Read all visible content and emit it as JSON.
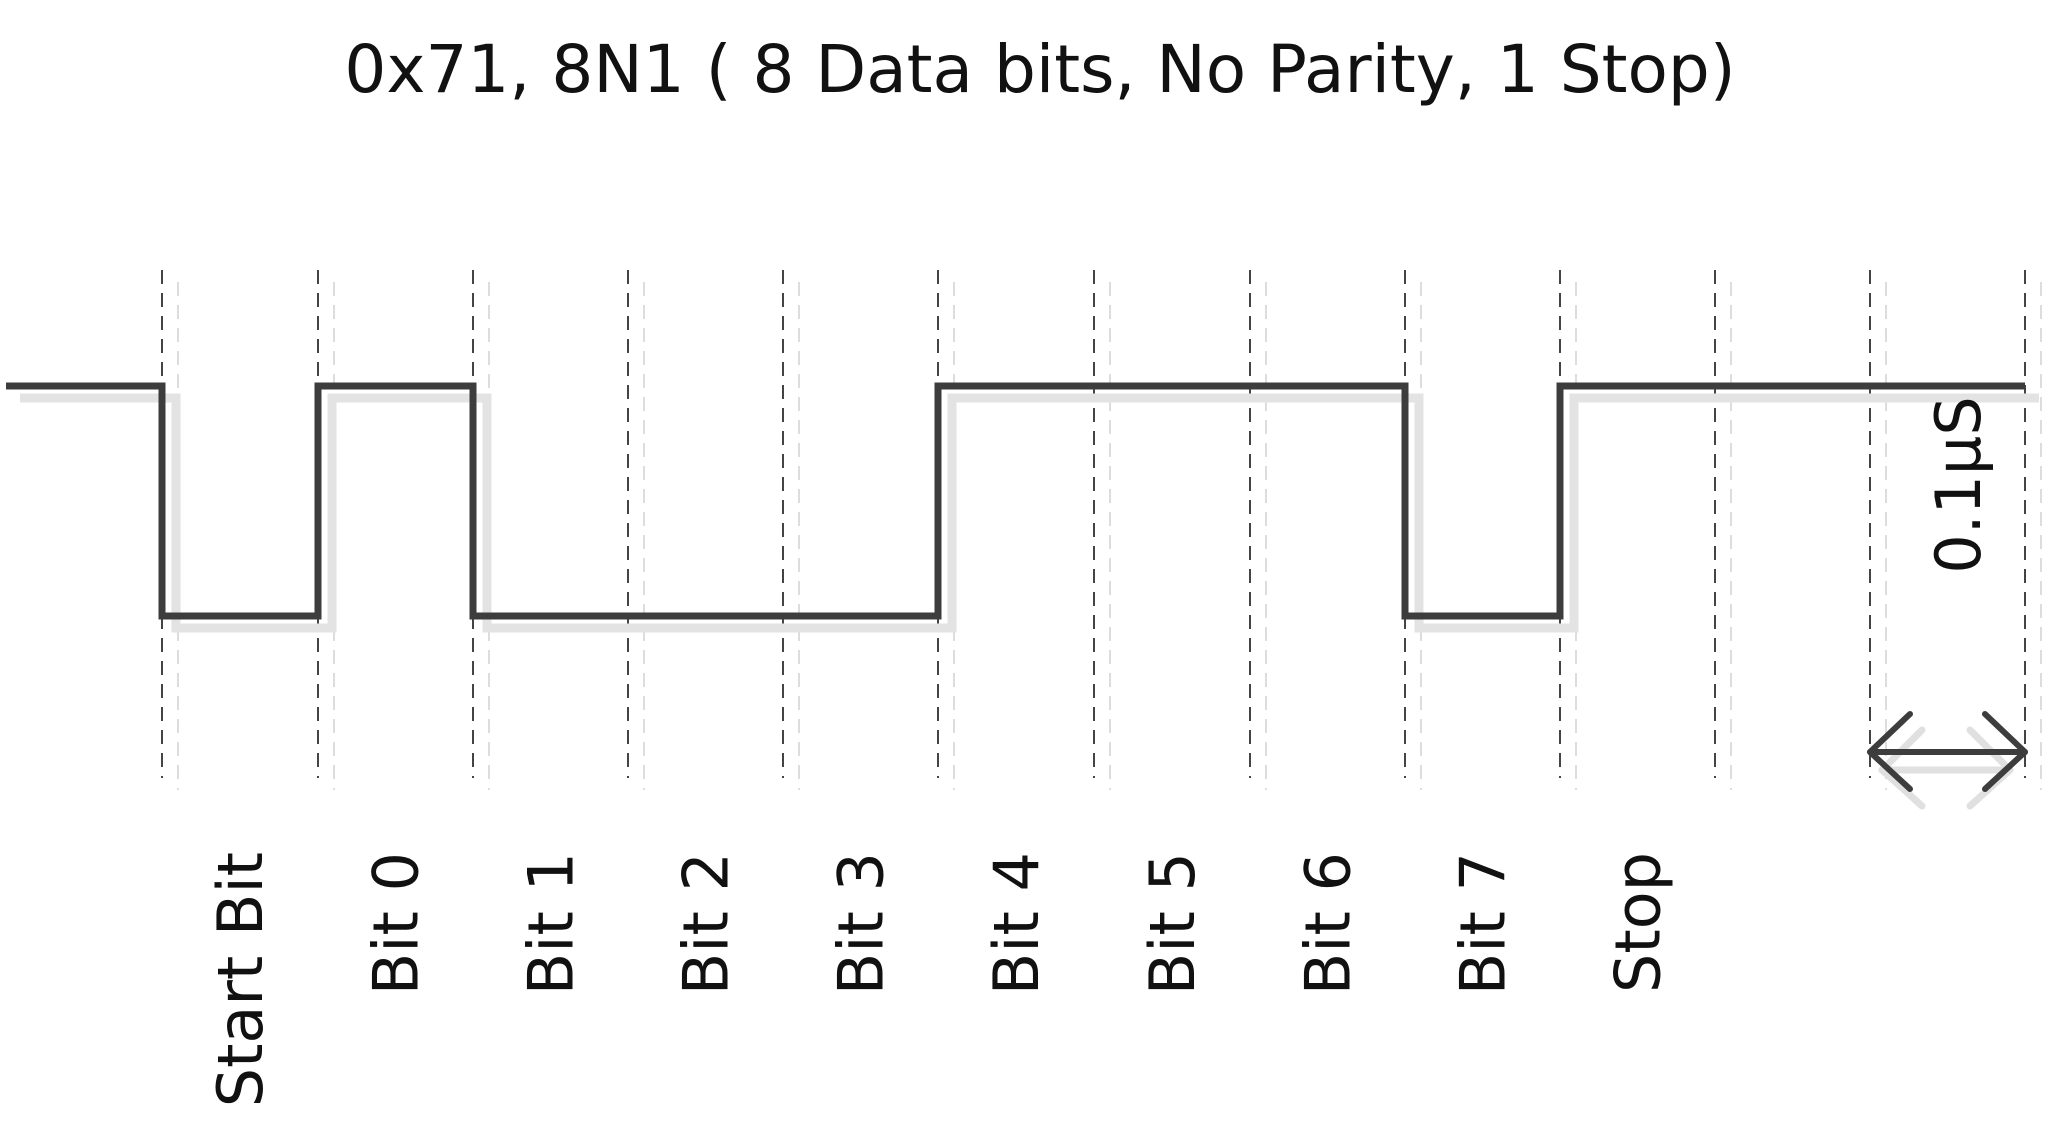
{
  "title": "0x71, 8N1 ( 8 Data bits, No Parity, 1 Stop)",
  "signal": {
    "levels": [
      0,
      1,
      0,
      0,
      0,
      1,
      1,
      1,
      0,
      1,
      1,
      1
    ],
    "level_names": [
      "Start Bit",
      "Bit 0",
      "Bit 1",
      "Bit 2",
      "Bit 3",
      "Bit 4",
      "Bit 5",
      "Bit 6",
      "Bit 7",
      "Stop"
    ]
  },
  "bit_labels": [
    "Start Bit",
    "Bit 0",
    "Bit 1",
    "Bit 2",
    "Bit 3",
    "Bit 4",
    "Bit 5",
    "Bit 6",
    "Bit 7",
    "Stop"
  ],
  "scale": {
    "label": "0.1µS"
  },
  "colors": {
    "wave": "#3d3d3d",
    "shadow": "#e3e3e3",
    "grid": "#444444",
    "text": "#111111"
  }
}
